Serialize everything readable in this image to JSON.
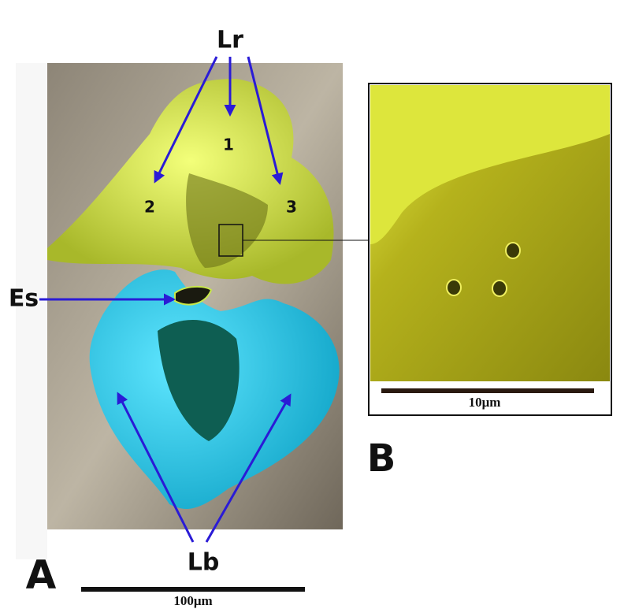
{
  "panel_a": {
    "label": "A",
    "labels": {
      "lr": "Lr",
      "es": "Es",
      "lb": "Lb",
      "n1": "1",
      "n2": "2",
      "n3": "3"
    },
    "scale_bar": "100μm"
  },
  "panel_b": {
    "label": "B",
    "scale_bar": "10μm"
  }
}
